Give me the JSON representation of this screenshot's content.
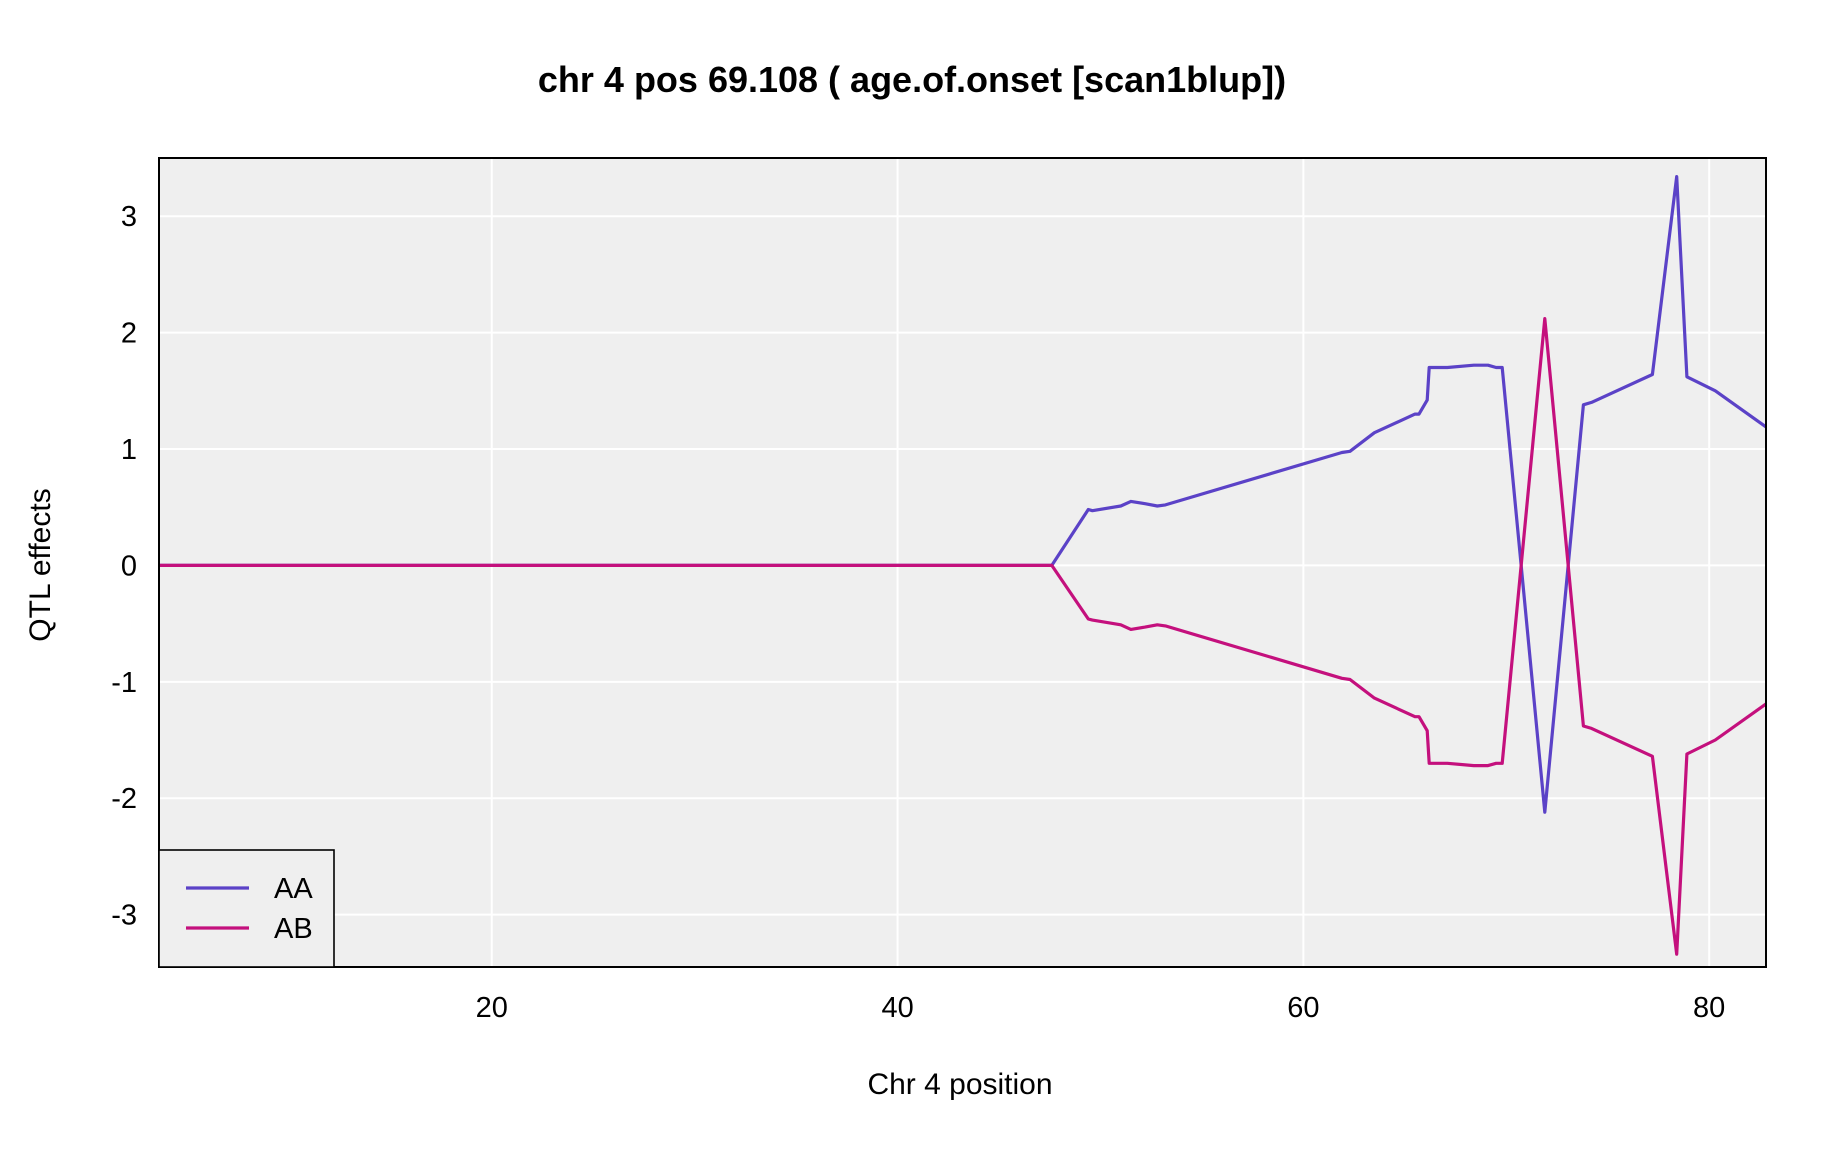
{
  "chart_data": {
    "type": "line",
    "title": "chr 4 pos 69.108 ( age.of.onset  [scan1blup])",
    "xlabel": "Chr 4 position",
    "ylabel": "QTL effects",
    "xlim": [
      3.6,
      82.8
    ],
    "ylim": [
      -3.45,
      3.5
    ],
    "xticks": [
      20,
      40,
      60,
      80
    ],
    "yticks": [
      -3,
      -2,
      -1,
      0,
      1,
      2,
      3
    ],
    "grid": true,
    "legend_position": "bottom-left",
    "series": [
      {
        "name": "AA",
        "color": "#5b42c7",
        "points": [
          [
            3.6,
            0
          ],
          [
            47.6,
            0
          ],
          [
            49.4,
            0.48
          ],
          [
            49.6,
            0.47
          ],
          [
            51.0,
            0.51
          ],
          [
            51.5,
            0.55
          ],
          [
            52.2,
            0.53
          ],
          [
            52.8,
            0.51
          ],
          [
            53.2,
            0.52
          ],
          [
            61.9,
            0.97
          ],
          [
            62.3,
            0.98
          ],
          [
            63.5,
            1.14
          ],
          [
            65.5,
            1.3
          ],
          [
            65.7,
            1.3
          ],
          [
            66.1,
            1.42
          ],
          [
            66.2,
            1.7
          ],
          [
            67.1,
            1.7
          ],
          [
            68.4,
            1.72
          ],
          [
            69.1,
            1.72
          ],
          [
            69.5,
            1.7
          ],
          [
            69.8,
            1.7
          ],
          [
            71.9,
            -2.12
          ],
          [
            73.8,
            1.38
          ],
          [
            74.2,
            1.4
          ],
          [
            77.2,
            1.64
          ],
          [
            78.4,
            3.34
          ],
          [
            78.9,
            1.62
          ],
          [
            80.3,
            1.5
          ],
          [
            82.8,
            1.19
          ]
        ]
      },
      {
        "name": "AB",
        "color": "#c4107d",
        "points": [
          [
            3.6,
            0
          ],
          [
            47.6,
            0
          ],
          [
            49.4,
            -0.46
          ],
          [
            49.6,
            -0.47
          ],
          [
            51.0,
            -0.51
          ],
          [
            51.5,
            -0.55
          ],
          [
            52.2,
            -0.53
          ],
          [
            52.8,
            -0.51
          ],
          [
            53.2,
            -0.52
          ],
          [
            61.9,
            -0.97
          ],
          [
            62.3,
            -0.98
          ],
          [
            63.5,
            -1.14
          ],
          [
            65.5,
            -1.3
          ],
          [
            65.7,
            -1.3
          ],
          [
            66.1,
            -1.42
          ],
          [
            66.2,
            -1.7
          ],
          [
            67.1,
            -1.7
          ],
          [
            68.4,
            -1.72
          ],
          [
            69.1,
            -1.72
          ],
          [
            69.5,
            -1.7
          ],
          [
            69.8,
            -1.7
          ],
          [
            71.9,
            2.12
          ],
          [
            73.8,
            -1.38
          ],
          [
            74.2,
            -1.4
          ],
          [
            77.2,
            -1.64
          ],
          [
            78.4,
            -3.34
          ],
          [
            78.9,
            -1.62
          ],
          [
            80.3,
            -1.5
          ],
          [
            82.8,
            -1.19
          ]
        ]
      }
    ]
  }
}
